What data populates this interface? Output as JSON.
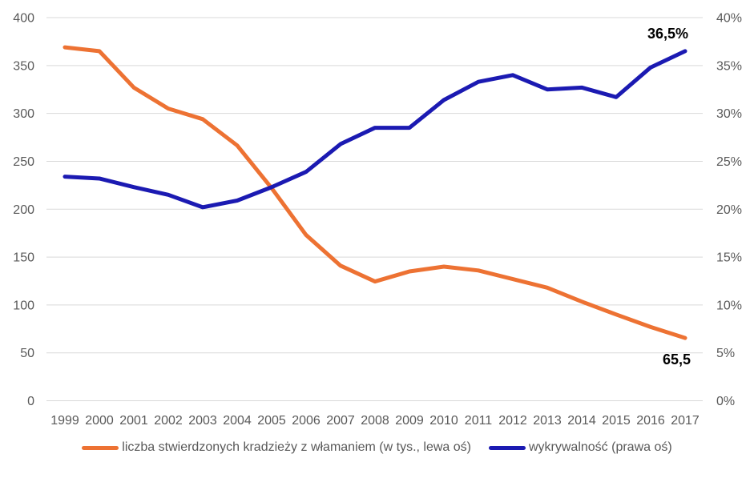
{
  "chart_data": {
    "type": "line",
    "title": "",
    "x": [
      "1999",
      "2000",
      "2001",
      "2002",
      "2003",
      "2004",
      "2005",
      "2006",
      "2007",
      "2008",
      "2009",
      "2010",
      "2011",
      "2012",
      "2013",
      "2014",
      "2015",
      "2016",
      "2017"
    ],
    "series": [
      {
        "name": "liczba stwierdzonych kradzieży z włamaniem (w tys., lewa oś)",
        "axis": "left",
        "color": "#ED7233",
        "values": [
          369,
          365,
          327,
          305,
          294,
          266.5,
          222,
          173,
          141,
          124.5,
          135,
          140,
          136,
          127,
          118,
          103.5,
          90,
          77,
          65.5
        ]
      },
      {
        "name": "wykrywalność (prawa oś)",
        "axis": "right",
        "color": "#1B1AB2",
        "values": [
          23.4,
          23.2,
          22.3,
          21.5,
          20.2,
          20.9,
          22.3,
          23.9,
          26.8,
          28.5,
          28.5,
          31.4,
          33.3,
          34.0,
          32.5,
          32.7,
          31.7,
          34.8,
          36.5
        ]
      }
    ],
    "left_axis": {
      "min": 0,
      "max": 400,
      "step": 50,
      "ticks": [
        "0",
        "50",
        "100",
        "150",
        "200",
        "250",
        "300",
        "350",
        "400"
      ]
    },
    "right_axis": {
      "min": 0,
      "max": 40,
      "step": 5,
      "ticks": [
        "0%",
        "5%",
        "10%",
        "15%",
        "20%",
        "25%",
        "30%",
        "35%",
        "40%"
      ]
    },
    "annotations": [
      {
        "text": "36,5%",
        "series_index": 1
      },
      {
        "text": "65,5",
        "series_index": 0
      }
    ],
    "grid": "horizontal",
    "legend_position": "bottom"
  },
  "colors": {
    "gridline": "#D9D9D9",
    "axis_text": "#595959",
    "annotation_text": "#000000",
    "background": "#FFFFFF"
  }
}
